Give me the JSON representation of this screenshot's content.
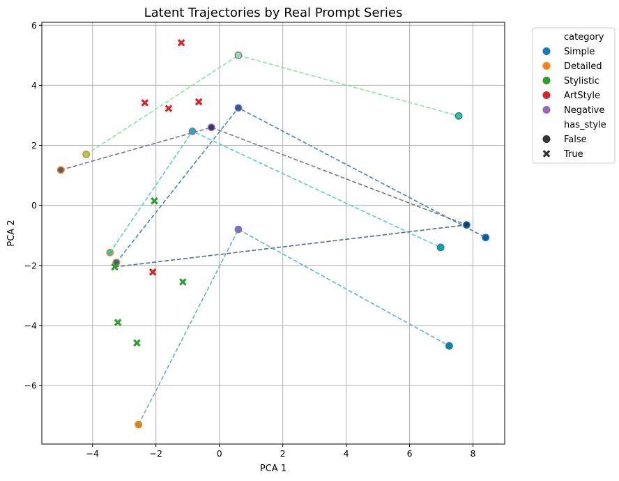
{
  "chart_data": {
    "type": "scatter",
    "title": "Latent Trajectories by Real Prompt Series",
    "xlabel": "PCA 1",
    "ylabel": "PCA 2",
    "xlim": [
      -5.6,
      9.0
    ],
    "ylim": [
      -7.95,
      6.1
    ],
    "xticks": [
      -4,
      -2,
      0,
      2,
      4,
      6,
      8
    ],
    "yticks": [
      -6,
      -4,
      -2,
      0,
      2,
      4,
      6
    ],
    "xtick_labels": [
      "−4",
      "−2",
      "0",
      "2",
      "4",
      "6",
      "8"
    ],
    "ytick_labels": [
      "−6",
      "−4",
      "−2",
      "0",
      "2",
      "4",
      "6"
    ],
    "grid": true,
    "legend_position": "outside-top-right",
    "legend": {
      "hue_title": "category",
      "hue_entries": [
        {
          "label": "Simple",
          "color": "#1f77b4"
        },
        {
          "label": "Detailed",
          "color": "#ff7f0e"
        },
        {
          "label": "Stylistic",
          "color": "#2ca02c"
        },
        {
          "label": "ArtStyle",
          "color": "#d62728"
        },
        {
          "label": "Negative",
          "color": "#9467bd"
        }
      ],
      "style_title": "has_style",
      "style_entries": [
        {
          "label": "False",
          "marker": "circle"
        },
        {
          "label": "True",
          "marker": "x"
        }
      ]
    },
    "trajectories": [
      {
        "color": "#86e39a",
        "points": [
          [
            -4.2,
            1.7
          ],
          [
            0.6,
            5.0
          ],
          [
            7.55,
            2.98
          ]
        ]
      },
      {
        "color": "#3b7fa8",
        "points": [
          [
            -3.25,
            -1.9
          ],
          [
            0.6,
            3.25
          ],
          [
            8.4,
            -1.07
          ]
        ]
      },
      {
        "color": "#4a9fc0",
        "points": [
          [
            -3.3,
            -2.05
          ],
          [
            7.8,
            -0.65
          ]
        ]
      },
      {
        "color": "#4ed0b8",
        "points": [
          [
            -3.45,
            -1.57
          ],
          [
            -0.85,
            2.47
          ],
          [
            6.98,
            -1.4
          ]
        ]
      },
      {
        "color": "#5ab0c0",
        "points": [
          [
            -2.55,
            -7.3
          ],
          [
            0.6,
            -0.8
          ],
          [
            7.25,
            -4.68
          ]
        ]
      },
      {
        "color": "#6a6f8a",
        "points": [
          [
            -5.0,
            1.18
          ],
          [
            -0.25,
            2.6
          ],
          [
            7.8,
            -0.65
          ]
        ]
      },
      {
        "color": "#6a6f8a",
        "points": [
          [
            -3.3,
            -2.05
          ],
          [
            7.8,
            -0.65
          ]
        ]
      }
    ],
    "points": [
      {
        "x": -4.2,
        "y": 1.7,
        "category": "Detailed",
        "has_style": false,
        "face": "#8fd66a"
      },
      {
        "x": 0.6,
        "y": 5.0,
        "category": "Negative",
        "has_style": false,
        "face": "#8fe3a0"
      },
      {
        "x": 7.55,
        "y": 2.98,
        "category": "Simple",
        "has_style": false,
        "face": "#3cc490"
      },
      {
        "x": -3.25,
        "y": -1.9,
        "category": "Detailed",
        "has_style": false,
        "face": "#2a6a9a"
      },
      {
        "x": 0.6,
        "y": 3.25,
        "category": "Negative",
        "has_style": false,
        "face": "#1f5f9a"
      },
      {
        "x": 8.4,
        "y": -1.07,
        "category": "Simple",
        "has_style": false,
        "face": "#0d5a9a"
      },
      {
        "x": -3.45,
        "y": -1.57,
        "category": "Detailed",
        "has_style": false,
        "face": "#3fbcb0"
      },
      {
        "x": -0.85,
        "y": 2.47,
        "category": "Negative",
        "has_style": false,
        "face": "#2aa9b0"
      },
      {
        "x": 6.98,
        "y": -1.4,
        "category": "Simple",
        "has_style": false,
        "face": "#12a8a8"
      },
      {
        "x": -2.55,
        "y": -7.3,
        "category": "Detailed",
        "has_style": false,
        "face": "#c09030"
      },
      {
        "x": 0.6,
        "y": -0.8,
        "category": "Negative",
        "has_style": false,
        "face": "#6f78b8"
      },
      {
        "x": 7.25,
        "y": -4.68,
        "category": "Simple",
        "has_style": false,
        "face": "#14869a"
      },
      {
        "x": -5.0,
        "y": 1.18,
        "category": "Detailed",
        "has_style": false,
        "face": "#5e5a66"
      },
      {
        "x": -0.25,
        "y": 2.6,
        "category": "Negative",
        "has_style": false,
        "face": "#3d3566"
      },
      {
        "x": 7.8,
        "y": -0.65,
        "category": "Simple",
        "has_style": false,
        "face": "#1c3e62"
      },
      {
        "x": -1.2,
        "y": 5.42,
        "category": "ArtStyle",
        "has_style": true
      },
      {
        "x": -2.35,
        "y": 3.42,
        "category": "ArtStyle",
        "has_style": true
      },
      {
        "x": -1.6,
        "y": 3.23,
        "category": "ArtStyle",
        "has_style": true
      },
      {
        "x": -0.65,
        "y": 3.45,
        "category": "ArtStyle",
        "has_style": true
      },
      {
        "x": -2.1,
        "y": -2.22,
        "category": "ArtStyle",
        "has_style": true
      },
      {
        "x": -2.05,
        "y": 0.15,
        "category": "Stylistic",
        "has_style": true
      },
      {
        "x": -3.3,
        "y": -2.05,
        "category": "Stylistic",
        "has_style": true
      },
      {
        "x": -1.15,
        "y": -2.55,
        "category": "Stylistic",
        "has_style": true
      },
      {
        "x": -3.2,
        "y": -3.9,
        "category": "Stylistic",
        "has_style": true
      },
      {
        "x": -2.6,
        "y": -4.58,
        "category": "Stylistic",
        "has_style": true
      }
    ]
  }
}
